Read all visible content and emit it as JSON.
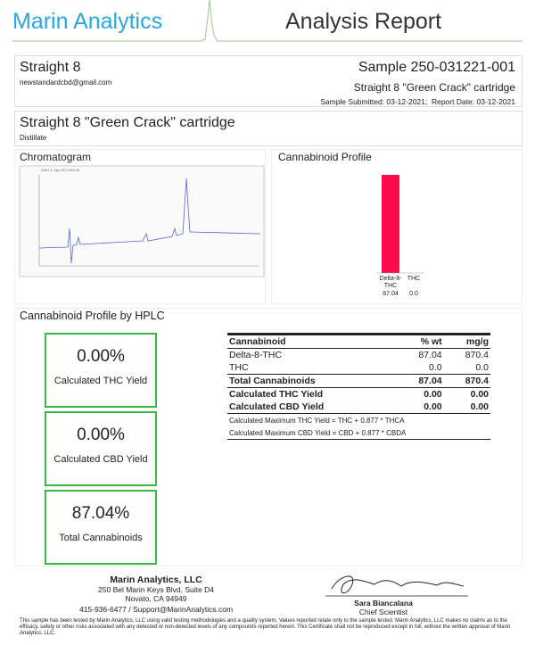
{
  "header": {
    "brand": "Marin Analytics",
    "title": "Analysis Report"
  },
  "client": {
    "name": "Straight 8",
    "email": "newstandardcbd@gmail.com"
  },
  "sample": {
    "id": "Sample 250-031221-001",
    "product": "Straight 8 \"Green Crack\" cartridge",
    "dates": "Sample Submitted: 03-12-2021;  Report Date: 03-12-2021"
  },
  "product": {
    "name": "Straight 8 \"Green Crack\" cartridge",
    "type": "Distillate"
  },
  "chromatogram": {
    "title": "Chromatogram"
  },
  "profile": {
    "title": "Cannabinoid Profile",
    "color": "#ff0a4a",
    "categories": [
      "Delta-8-THC",
      "THC"
    ],
    "values": [
      87.04,
      0
    ],
    "value_labels": [
      "87.04",
      "0.0"
    ]
  },
  "hplc": {
    "title": "Cannabinoid Profile by HPLC",
    "summary": [
      {
        "value": "0.00%",
        "label": "Calculated THC Yield"
      },
      {
        "value": "0.00%",
        "label": "Calculated CBD Yield"
      },
      {
        "value": "87.04%",
        "label": "Total Cannabinoids"
      }
    ],
    "table": {
      "columns": [
        "Cannabinoid",
        "% wt",
        "mg/g"
      ],
      "rows": [
        [
          "Delta-8-THC",
          "87.04",
          "870.4"
        ],
        [
          "THC",
          "0.0",
          "0.0"
        ],
        [
          "Total Cannabinoids",
          "87.04",
          "870.4"
        ],
        [
          "Calculated THC Yield",
          "0.00",
          "0.00"
        ],
        [
          "Calculated CBD Yield",
          "0.00",
          "0.00"
        ]
      ],
      "notes": [
        "Calculated Maximum THC Yield = THC + 0.877 * THCA",
        "Calculated Maximum CBD Yield = CBD + 0.877 * CBDA"
      ]
    }
  },
  "footer": {
    "company": "Marin Analytics, LLC",
    "address": "250 Bel Marin Keys Blvd, Suite D4",
    "city": "Novato, CA 94949",
    "contact": "415-936-6477 / Support@MarinAnalytics.com",
    "signer": "Sara Biancalana",
    "signer_title": "Chief Scientist",
    "disclaimer": "This sample has been tested by Marin Analytics, LLC using valid testing methodologies and a quality system.  Values reported relate only to the sample tested.  Marin Analytics, LLC makes no claims as to the efficacy, safety or other risks associated with any detected or non-detected levels of any compounds reported herein.  This Certificate shall not be reproduced except in full, without the written approval of Marin Analytics, LLC."
  }
}
